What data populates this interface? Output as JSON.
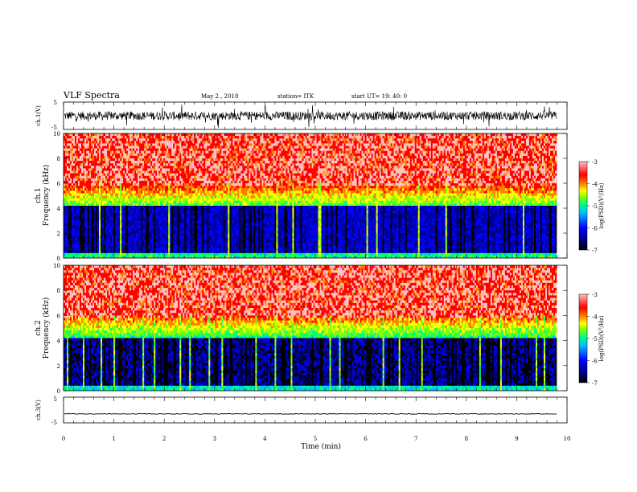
{
  "header": {
    "title": "VLF Spectra",
    "date": "May 2 , 2018",
    "station": "station= ITK",
    "start": "start UT= 19: 40: 0"
  },
  "chart_data": [
    {
      "type": "line",
      "ylabel": "ch.1(V)",
      "ylim": [
        -5,
        5
      ],
      "yticks": [
        "5",
        "-5"
      ],
      "xlim": [
        0,
        10
      ],
      "note": "noisy waveform, amplitude roughly -3 to 3 V"
    },
    {
      "type": "heatmap",
      "ylabel_line1": "ch.1",
      "ylabel_line2": "Frequency (kHz)",
      "ylim": [
        0,
        10
      ],
      "yticks": [
        "0",
        "2",
        "4",
        "6",
        "8",
        "10"
      ],
      "xlim": [
        0,
        10
      ],
      "colorbar": {
        "label": "log(PSD)(V²/Hz)",
        "range": [
          -7,
          -3
        ],
        "ticks": [
          "-3",
          "-4",
          "-5",
          "-6",
          "-7"
        ]
      }
    },
    {
      "type": "heatmap",
      "ylabel_line1": "ch.2",
      "ylabel_line2": "Frequency (kHz)",
      "ylim": [
        0,
        10
      ],
      "yticks": [
        "0",
        "2",
        "4",
        "6",
        "8",
        "10"
      ],
      "xlim": [
        0,
        10
      ],
      "colorbar": {
        "label": "log(PSD)(V²/Hz)",
        "range": [
          -7,
          -3
        ],
        "ticks": [
          "-3",
          "-4",
          "-5",
          "-6",
          "-7"
        ]
      }
    },
    {
      "type": "line",
      "ylabel": "ch.3(V)",
      "ylim": [
        -5,
        5
      ],
      "yticks": [
        "5",
        "-5"
      ],
      "xlim": [
        0,
        10
      ],
      "xlabel": "Time (min)",
      "xticks": [
        "0",
        "1",
        "2",
        "3",
        "4",
        "5",
        "6",
        "7",
        "8",
        "9",
        "10"
      ],
      "note": "flat trace near -1.5 V"
    }
  ],
  "colors": {
    "colormap": [
      "#000000",
      "#00008b",
      "#0000ff",
      "#00bfff",
      "#00ff7f",
      "#7fff00",
      "#ffff00",
      "#ff7f00",
      "#ff0000",
      "#ffc0c0"
    ]
  }
}
